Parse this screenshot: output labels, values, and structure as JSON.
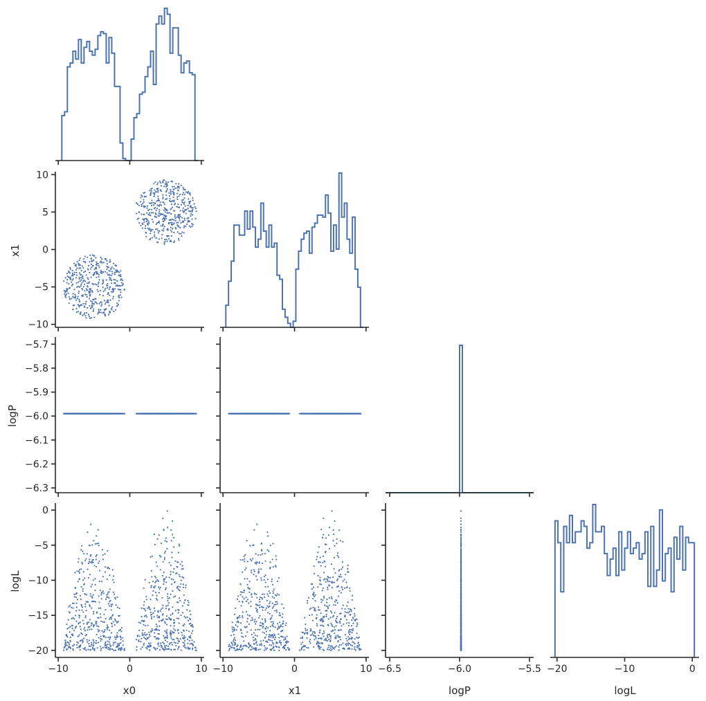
{
  "chart_data": {
    "type": "corner",
    "title": "",
    "variables": [
      "x0",
      "x1",
      "logP",
      "logL"
    ],
    "color": "#4c72b0",
    "axis_color": "#262626",
    "tick_labels": {
      "x0": [
        "−10",
        "0",
        "10"
      ],
      "x1": [
        "−10",
        "0",
        "10"
      ],
      "x1_y": [
        "−10",
        "−5",
        "0",
        "5",
        "10"
      ],
      "logP": [
        "−6.5",
        "−6.0",
        "−5.5"
      ],
      "logP_y": [
        "−6.3",
        "−6.2",
        "−6.1",
        "−6.0",
        "−5.9",
        "−5.8",
        "−5.7"
      ],
      "logL": [
        "−20",
        "−10",
        "0"
      ],
      "logL_y": [
        "−20",
        "−15",
        "−10",
        "−5",
        "0"
      ]
    },
    "ranges": {
      "x0": [
        -10.4,
        10.4
      ],
      "x1": [
        -10.4,
        10.4
      ],
      "logP": [
        -6.53,
        -5.47
      ],
      "logP_y": [
        -6.32,
        -5.67
      ],
      "logL": [
        -21.0,
        1.0
      ]
    },
    "hist_x0": {
      "range": [
        -9.5,
        9.5
      ],
      "counts": [
        23,
        25,
        48,
        50,
        56,
        52,
        62,
        50,
        58,
        61,
        56,
        54,
        57,
        64,
        66,
        65,
        50,
        63,
        55,
        38,
        38,
        9,
        1,
        0,
        0,
        11,
        22,
        24,
        34,
        35,
        43,
        48,
        56,
        39,
        70,
        74,
        70,
        78,
        75,
        55,
        68,
        68,
        54,
        45,
        50,
        51,
        45,
        44,
        0
      ]
    },
    "hist_x1": {
      "range": [
        -9.6,
        9.6
      ],
      "counts": [
        11,
        23,
        33,
        51,
        51,
        46,
        46,
        58,
        49,
        58,
        50,
        40,
        44,
        62,
        48,
        40,
        51,
        40,
        42,
        26,
        24,
        9,
        5,
        2,
        0,
        3,
        29,
        38,
        44,
        47,
        48,
        37,
        50,
        52,
        56,
        56,
        55,
        66,
        57,
        38,
        51,
        39,
        77,
        55,
        62,
        44,
        37,
        55,
        29,
        20,
        0
      ]
    },
    "hist_logP": {
      "range": [
        -6.53,
        -5.47
      ],
      "bins": [
        [
          -6.0,
          -5.98,
          1000
        ]
      ]
    },
    "hist_logL": {
      "range": [
        -20.3,
        0.3
      ],
      "counts": [
        25,
        21,
        12,
        24,
        21,
        26,
        21,
        23,
        23,
        25,
        24,
        20,
        21,
        28,
        23,
        23,
        24,
        19,
        15,
        18,
        20,
        15,
        23,
        16,
        20,
        23,
        19,
        20,
        21,
        18,
        19,
        23,
        13,
        24,
        13,
        16,
        27,
        14,
        19,
        20,
        12,
        22,
        18,
        24,
        16,
        22,
        21,
        21
      ]
    }
  }
}
